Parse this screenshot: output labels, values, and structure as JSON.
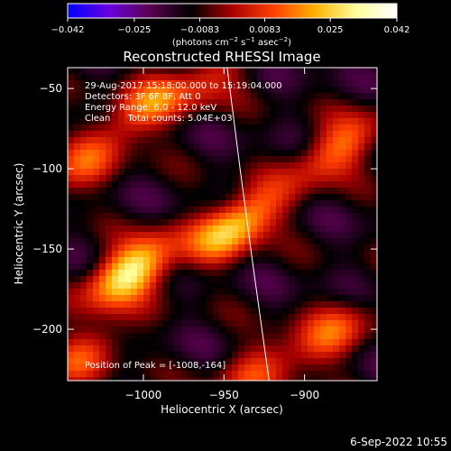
{
  "chart_data": {
    "type": "heatmap",
    "title": "Reconstructed RHESSI Image",
    "xlabel": "Heliocentric X (arcsec)",
    "ylabel": "Heliocentric Y (arcsec)",
    "x_range": [
      -1047,
      -855
    ],
    "y_range": [
      -232,
      -37
    ],
    "x_ticks": [
      -1000,
      -950,
      -900
    ],
    "y_ticks": [
      -50,
      -100,
      -150,
      -200
    ],
    "x_tick_labels": [
      "−1000",
      "−950",
      "−900"
    ],
    "y_tick_labels": [
      "−50",
      "−100",
      "−150",
      "−200"
    ],
    "grid": false,
    "colorbar": {
      "range": [
        -0.042,
        0.042
      ],
      "ticks": [
        -0.042,
        -0.025,
        -0.0083,
        0.0083,
        0.025,
        0.042
      ],
      "tick_labels": [
        "−0.042",
        "−0.025",
        "−0.0083",
        "0.0083",
        "0.025",
        "0.042"
      ],
      "label_prefix": "(photons cm",
      "label_exp1": "−2",
      "label_mid": " s",
      "label_exp2": "−1",
      "label_mid2": " asec",
      "label_exp3": "−2",
      "label_suffix": ")",
      "colormap": [
        "#0000ff",
        "#6a00e0",
        "#5a0050",
        "#000000",
        "#aa0000",
        "#ff4000",
        "#ffb000",
        "#ffff99",
        "#ffffff"
      ]
    },
    "info_lines": [
      "29-Aug-2017 15:18:00.000 to 15:19:04.000",
      "Detectors: 3F 6F 8F, Att 0",
      "Energy Range: 6.0 - 12.0 keV",
      "Clean      Total counts: 5.04E+03"
    ],
    "peak_label": "Position of Peak = [-1008,-164]",
    "peak": {
      "x": -1008,
      "y": -164,
      "value": 0.042
    },
    "limb_arc": [
      {
        "x": -948,
        "y": -37
      },
      {
        "x": -940,
        "y": -100
      },
      {
        "x": -932,
        "y": -160
      },
      {
        "x": -922,
        "y": -232
      }
    ],
    "sources": [
      {
        "x": -1008,
        "y": -164,
        "amp": 1.0
      },
      {
        "x": -942,
        "y": -135,
        "amp": 0.9
      },
      {
        "x": -1000,
        "y": -62,
        "amp": 0.55
      },
      {
        "x": -880,
        "y": -88,
        "amp": 0.6
      },
      {
        "x": -885,
        "y": -205,
        "amp": 0.5
      },
      {
        "x": -1040,
        "y": -100,
        "amp": 0.45
      },
      {
        "x": -1035,
        "y": -215,
        "amp": 0.45
      },
      {
        "x": -930,
        "y": -225,
        "amp": 0.4
      },
      {
        "x": -960,
        "y": -45,
        "amp": 0.35
      }
    ],
    "footer_timestamp": "6-Sep-2022 10:55"
  }
}
